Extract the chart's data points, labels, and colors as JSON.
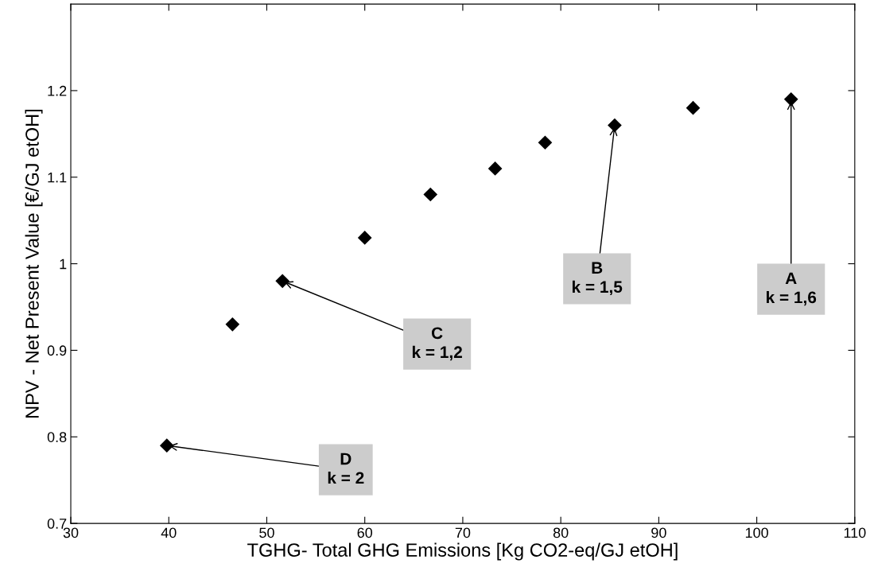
{
  "chart_data": {
    "type": "scatter",
    "xlabel": "TGHG- Total GHG Emissions [Kg CO2-eq/GJ etOH]",
    "ylabel": "NPV - Net Present Value [€/GJ etOH]",
    "x": [
      39.8,
      46.5,
      51.6,
      60,
      66.7,
      73.3,
      78.4,
      85.5,
      93.5,
      103.5
    ],
    "series": [
      {
        "color": "#000000",
        "values": [
          0.79,
          0.93,
          0.98,
          1.03,
          1.08,
          1.11,
          1.14,
          1.16,
          1.18,
          1.19
        ]
      }
    ],
    "marker": "diamond",
    "grid": false,
    "legend": false,
    "xlim": [
      30,
      110
    ],
    "xticks": [
      30,
      40,
      50,
      60,
      70,
      80,
      90,
      100,
      110
    ],
    "ylim": [
      0.7,
      1.3
    ],
    "yticks": [
      0.7,
      0.8,
      0.9,
      1,
      1.1,
      1.2
    ],
    "annotations": [
      {
        "text": "A\nk = 1,6",
        "x": 103.5,
        "y": 1.19
      },
      {
        "text": "B\nk = 1,5",
        "x": 85.5,
        "y": 1.16
      },
      {
        "text": "C\nk = 1,2",
        "x": 51.6,
        "y": 0.98
      },
      {
        "text": "D\nk = 2",
        "x": 39.8,
        "y": 0.79
      }
    ]
  }
}
